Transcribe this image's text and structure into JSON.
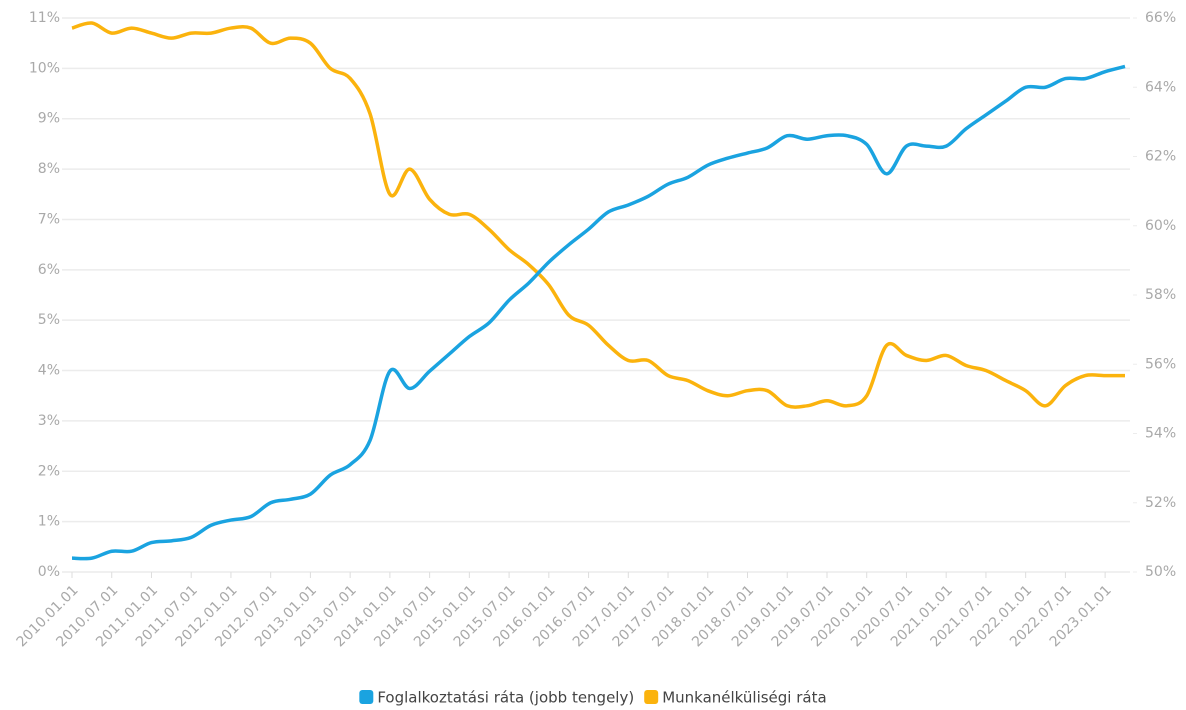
{
  "chart_data": {
    "type": "line",
    "categories": [
      "2010.01.01",
      null,
      "2010.07.01",
      null,
      "2011.01.01",
      null,
      "2011.07.01",
      null,
      "2012.01.01",
      null,
      "2012.07.01",
      null,
      "2013.01.01",
      null,
      "2013.07.01",
      null,
      "2014.01.01",
      null,
      "2014.07.01",
      null,
      "2015.01.01",
      null,
      "2015.07.01",
      null,
      "2016.01.01",
      null,
      "2016.07.01",
      null,
      "2017.01.01",
      null,
      "2017.07.01",
      null,
      "2018.01.01",
      null,
      "2018.07.01",
      null,
      "2019.01.01",
      null,
      "2019.07.01",
      null,
      "2020.01.01",
      null,
      "2020.07.01",
      null,
      "2021.01.01",
      null,
      "2021.07.01",
      null,
      "2022.01.01",
      null,
      "2022.07.01",
      null,
      "2023.01.01",
      null
    ],
    "series": [
      {
        "name": "Foglalkoztatási ráta (jobb tengely)",
        "color": "#1aa3e0",
        "axis": "y2",
        "values": [
          50.4,
          50.4,
          50.6,
          50.6,
          50.85,
          50.9,
          51.0,
          51.35,
          51.5,
          51.6,
          52.0,
          52.1,
          52.25,
          52.8,
          53.1,
          53.8,
          55.8,
          55.3,
          55.8,
          56.3,
          56.8,
          57.2,
          57.85,
          58.35,
          58.95,
          59.45,
          59.9,
          60.4,
          60.6,
          60.85,
          61.2,
          61.4,
          61.75,
          61.95,
          62.1,
          62.25,
          62.6,
          62.5,
          62.6,
          62.6,
          62.35,
          61.5,
          62.3,
          62.3,
          62.3,
          62.8,
          63.2,
          63.6,
          64.0,
          64.0,
          64.25,
          64.25,
          64.45,
          64.6
        ]
      },
      {
        "name": "Munkanélküliségi ráta",
        "color": "#fbb30d",
        "values": [
          10.8,
          10.9,
          10.7,
          10.8,
          10.7,
          10.6,
          10.7,
          10.7,
          10.8,
          10.8,
          10.5,
          10.6,
          10.5,
          10.0,
          9.8,
          9.1,
          7.5,
          8.0,
          7.4,
          7.1,
          7.1,
          6.8,
          6.4,
          6.1,
          5.7,
          5.1,
          4.9,
          4.5,
          4.2,
          4.2,
          3.9,
          3.8,
          3.6,
          3.5,
          3.6,
          3.6,
          3.3,
          3.3,
          3.4,
          3.3,
          3.5,
          4.5,
          4.3,
          4.2,
          4.3,
          4.1,
          4.0,
          3.8,
          3.6,
          3.3,
          3.7,
          3.9,
          3.9,
          3.9
        ]
      }
    ],
    "ylim": [
      0,
      11
    ],
    "yticks": [
      {
        "value": 0,
        "label": "0%"
      },
      {
        "value": 1,
        "label": "1%"
      },
      {
        "value": 2,
        "label": "2%"
      },
      {
        "value": 3,
        "label": "3%"
      },
      {
        "value": 4,
        "label": "4%"
      },
      {
        "value": 5,
        "label": "5%"
      },
      {
        "value": 6,
        "label": "6%"
      },
      {
        "value": 7,
        "label": "7%"
      },
      {
        "value": 8,
        "label": "8%"
      },
      {
        "value": 9,
        "label": "9%"
      },
      {
        "value": 10,
        "label": "10%"
      },
      {
        "value": 11,
        "label": "11%"
      }
    ],
    "y2lim": [
      50,
      66
    ],
    "y2ticks": [
      {
        "value": 50,
        "label": "50%"
      },
      {
        "value": 52,
        "label": "52%"
      },
      {
        "value": 54,
        "label": "54%"
      },
      {
        "value": 56,
        "label": "56%"
      },
      {
        "value": 58,
        "label": "58%"
      },
      {
        "value": 60,
        "label": "60%"
      },
      {
        "value": 62,
        "label": "62%"
      },
      {
        "value": 64,
        "label": "64%"
      },
      {
        "value": 66,
        "label": "66%"
      }
    ],
    "grid": true,
    "legend": "bottom"
  }
}
